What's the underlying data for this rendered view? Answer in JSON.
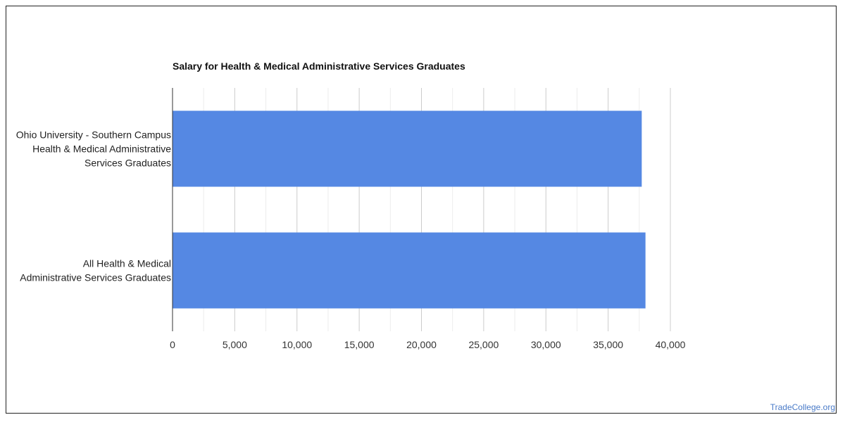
{
  "chart_data": {
    "type": "bar",
    "orientation": "horizontal",
    "title": "Salary for Health & Medical Administrative Services Graduates",
    "categories": [
      [
        "Ohio University - Southern Campus",
        "Health & Medical Administrative",
        "Services Graduates"
      ],
      [
        "All Health & Medical",
        "Administrative Services Graduates"
      ]
    ],
    "values": [
      37700,
      38000
    ],
    "xlim": [
      0,
      40000
    ],
    "xticks": [
      0,
      5000,
      10000,
      15000,
      20000,
      25000,
      30000,
      35000,
      40000
    ],
    "xtick_labels": [
      "0",
      "5,000",
      "10,000",
      "15,000",
      "20,000",
      "25,000",
      "30,000",
      "35,000",
      "40,000"
    ],
    "bar_color": "#5588e3",
    "grid": true
  },
  "watermark": "TradeCollege.org"
}
